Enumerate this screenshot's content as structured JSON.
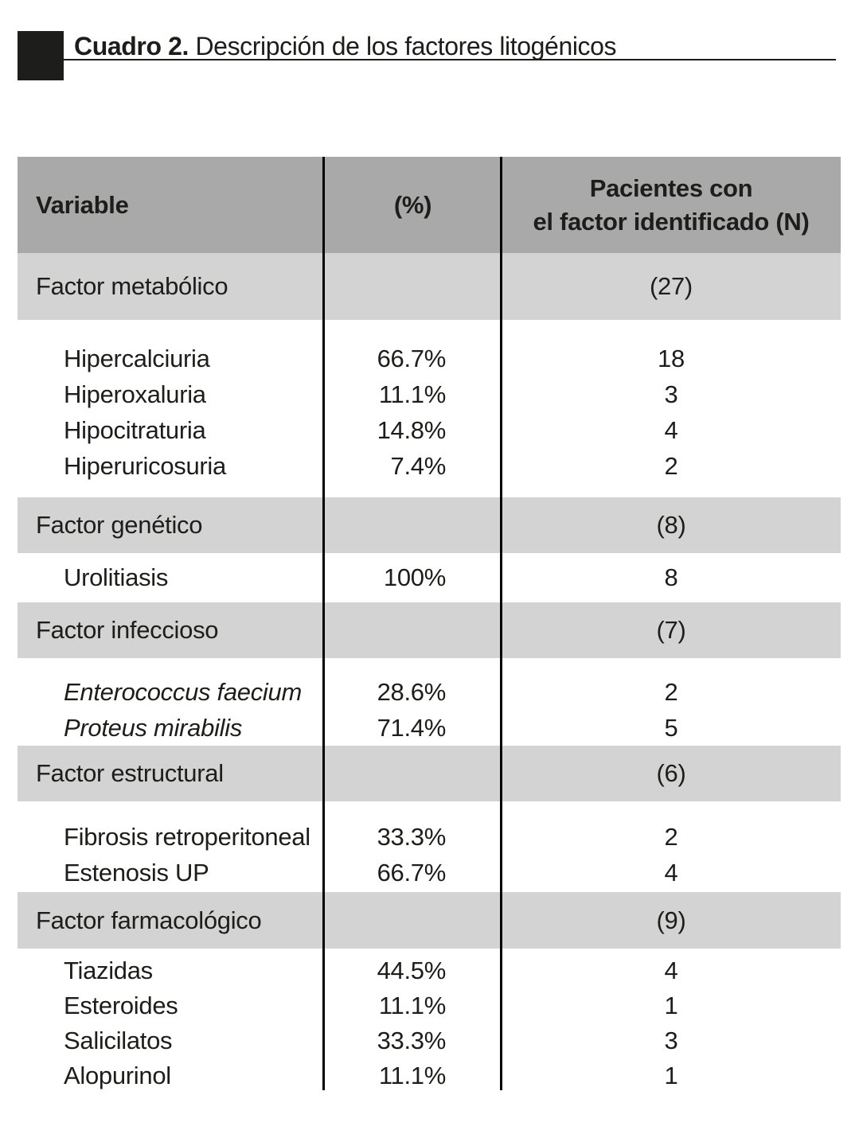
{
  "title": {
    "label": "Cuadro 2.",
    "text": " Descripción de los factores litogénicos"
  },
  "colors": {
    "header_bg": "#a9a9a9",
    "section_bg": "#d3d3d3",
    "text": "#1d1d1b",
    "rule": "#000000"
  },
  "table": {
    "header": {
      "col1": "Variable",
      "col2": "(%)",
      "col3_line1": "Pacientes con",
      "col3_line2": "el factor identificado (N)"
    },
    "sections": [
      {
        "name": "Factor metabólico",
        "n": "(27)",
        "items": [
          {
            "name": "Hipercalciuria",
            "pct": "66.7%",
            "n": "18",
            "italic": false
          },
          {
            "name": "Hiperoxaluria",
            "pct": "11.1%",
            "n": "3",
            "italic": false
          },
          {
            "name": "Hipocitraturia",
            "pct": "14.8%",
            "n": "4",
            "italic": false
          },
          {
            "name": "Hiperuricosuria",
            "pct": "7.4%",
            "n": "2",
            "italic": false
          }
        ]
      },
      {
        "name": "Factor genético",
        "n": "(8)",
        "items": [
          {
            "name": "Urolitiasis",
            "pct": "100%",
            "n": "8",
            "italic": false
          }
        ]
      },
      {
        "name": "Factor infeccioso",
        "n": "(7)",
        "items": [
          {
            "name": "Enterococcus faecium",
            "pct": "28.6%",
            "n": "2",
            "italic": true
          },
          {
            "name": "Proteus mirabilis",
            "pct": "71.4%",
            "n": "5",
            "italic": true
          }
        ]
      },
      {
        "name": "Factor estructural",
        "n": "(6)",
        "items": [
          {
            "name": "Fibrosis retroperitoneal",
            "pct": "33.3%",
            "n": "2",
            "italic": false
          },
          {
            "name": "Estenosis UP",
            "pct": "66.7%",
            "n": "4",
            "italic": false
          }
        ]
      },
      {
        "name": "Factor farmacológico",
        "n": "(9)",
        "items": [
          {
            "name": "Tiazidas",
            "pct": "44.5%",
            "n": "4",
            "italic": false
          },
          {
            "name": "Esteroides",
            "pct": "11.1%",
            "n": "1",
            "italic": false
          },
          {
            "name": "Salicilatos",
            "pct": "33.3%",
            "n": "3",
            "italic": false
          },
          {
            "name": "Alopurinol",
            "pct": "11.1%",
            "n": "1",
            "italic": false
          }
        ]
      }
    ]
  }
}
